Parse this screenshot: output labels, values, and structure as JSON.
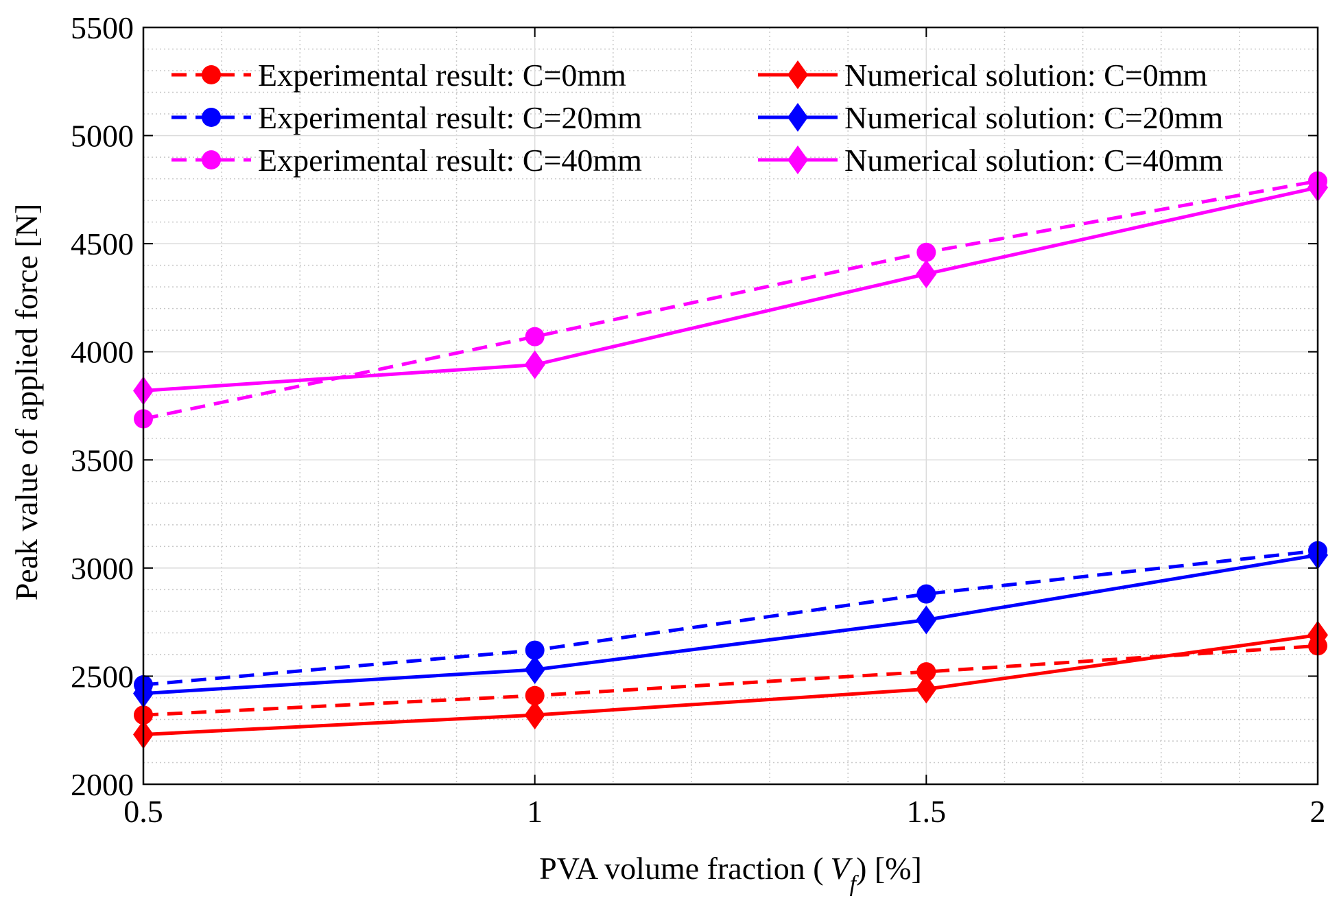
{
  "chart_data": {
    "type": "line",
    "title": "",
    "xlabel_parts": [
      "PVA volume fraction (",
      "V",
      "f",
      ") [%]"
    ],
    "ylabel": "Peak value of applied force [N]",
    "xlim": [
      0.5,
      2
    ],
    "ylim": [
      2000,
      5500
    ],
    "x": [
      0.5,
      1,
      1.5,
      2
    ],
    "x_ticks": [
      "0.5",
      "1",
      "1.5",
      "2"
    ],
    "x_minor_step": 0.1,
    "y_ticks": [
      "2000",
      "2500",
      "3000",
      "3500",
      "4000",
      "4500",
      "5000",
      "5500"
    ],
    "y_minor_step": 100,
    "grid": "major and minor",
    "legend_position": "top, two columns",
    "series": [
      {
        "name": "Experimental result: C=0mm",
        "color": "#ff0000",
        "line": "dashed",
        "marker": "circle",
        "values": [
          2320,
          2410,
          2520,
          2640
        ]
      },
      {
        "name": "Experimental result: C=20mm",
        "color": "#0000ff",
        "line": "dashed",
        "marker": "circle",
        "values": [
          2460,
          2620,
          2880,
          3080
        ]
      },
      {
        "name": "Experimental result: C=40mm",
        "color": "#ff00ff",
        "line": "dashed",
        "marker": "circle",
        "values": [
          3690,
          4070,
          4460,
          4790
        ]
      },
      {
        "name": "Numerical solution: C=0mm",
        "color": "#ff0000",
        "line": "solid",
        "marker": "diamond",
        "values": [
          2230,
          2320,
          2440,
          2690
        ]
      },
      {
        "name": "Numerical solution: C=20mm",
        "color": "#0000ff",
        "line": "solid",
        "marker": "diamond",
        "values": [
          2420,
          2530,
          2760,
          3060
        ]
      },
      {
        "name": "Numerical solution: C=40mm",
        "color": "#ff00ff",
        "line": "solid",
        "marker": "diamond",
        "values": [
          3820,
          3940,
          4360,
          4760
        ]
      }
    ]
  }
}
